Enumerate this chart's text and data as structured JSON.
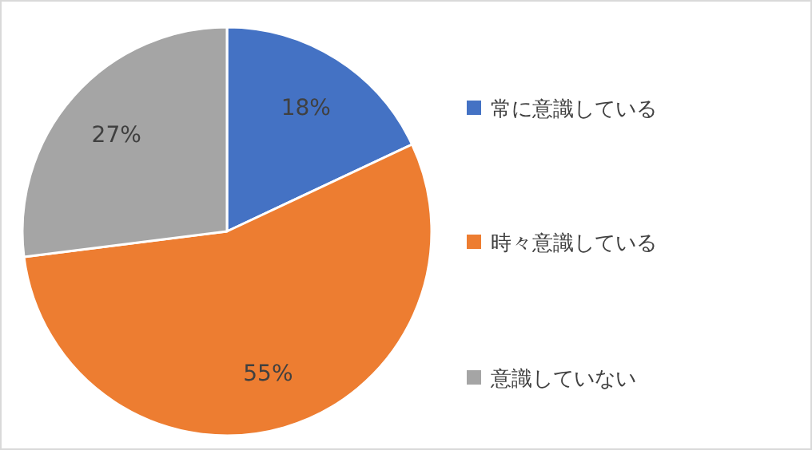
{
  "chart_data": {
    "type": "pie",
    "categories": [
      "常に意識している",
      "時々意識している",
      "意識していない"
    ],
    "values": [
      18,
      55,
      27
    ],
    "value_labels": [
      "18%",
      "55%",
      "27%"
    ],
    "colors": [
      "#4472c4",
      "#ed7d31",
      "#a5a5a5"
    ],
    "legend": "right"
  }
}
